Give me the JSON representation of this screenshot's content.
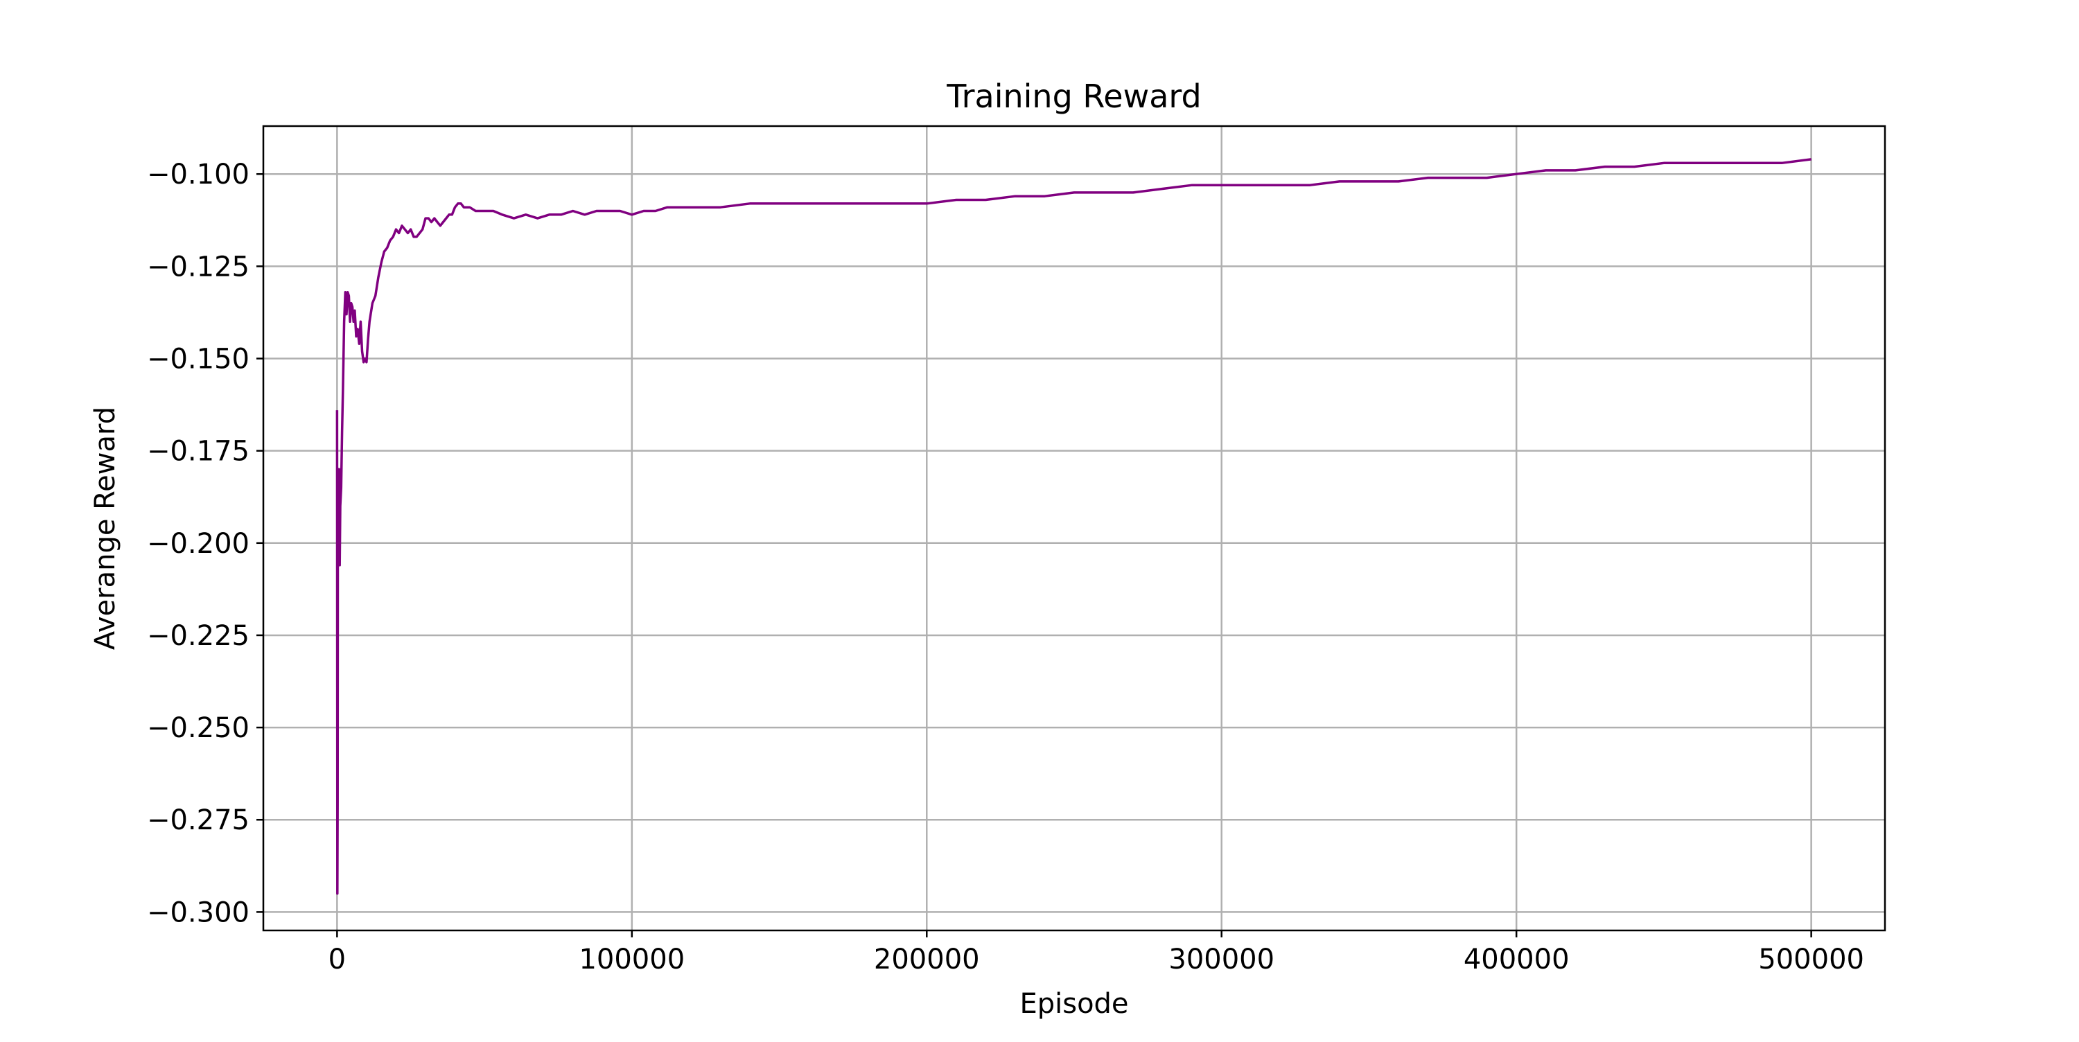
{
  "chart_data": {
    "type": "line",
    "title": "Training Reward",
    "xlabel": "Episode",
    "ylabel": "Averange Reward",
    "xlim": [
      -25000,
      525000
    ],
    "ylim": [
      -0.305,
      -0.087
    ],
    "xticks": [
      0,
      100000,
      200000,
      300000,
      400000,
      500000
    ],
    "xtick_labels": [
      "0",
      "100000",
      "200000",
      "300000",
      "400000",
      "500000"
    ],
    "yticks": [
      -0.3,
      -0.275,
      -0.25,
      -0.225,
      -0.2,
      -0.175,
      -0.15,
      -0.125,
      -0.1
    ],
    "ytick_labels": [
      "−0.300",
      "−0.275",
      "−0.250",
      "−0.225",
      "−0.200",
      "−0.175",
      "−0.150",
      "−0.125",
      "−0.100"
    ],
    "grid": true,
    "legend": "none",
    "series": [
      {
        "color": "#800080",
        "x": [
          0,
          100,
          200,
          300,
          500,
          700,
          900,
          1100,
          1400,
          1700,
          2000,
          2400,
          2800,
          3200,
          3600,
          4000,
          4400,
          4800,
          5200,
          5600,
          6000,
          6500,
          7000,
          7500,
          8000,
          8500,
          9000,
          9500,
          10000,
          10500,
          11000,
          12000,
          13000,
          14000,
          15000,
          16000,
          17000,
          18000,
          19000,
          20000,
          21000,
          22000,
          23000,
          24000,
          25000,
          26000,
          27000,
          28000,
          29000,
          30000,
          31000,
          32000,
          33000,
          34000,
          35000,
          36000,
          37000,
          38000,
          39000,
          40000,
          41000,
          42000,
          43000,
          44000,
          45000,
          47000,
          50000,
          53000,
          56000,
          60000,
          64000,
          68000,
          72000,
          76000,
          80000,
          84000,
          88000,
          92000,
          96000,
          100000,
          104000,
          108000,
          112000,
          120000,
          130000,
          140000,
          150000,
          160000,
          170000,
          180000,
          190000,
          200000,
          210000,
          220000,
          230000,
          240000,
          250000,
          260000,
          270000,
          280000,
          290000,
          300000,
          310000,
          320000,
          330000,
          340000,
          350000,
          360000,
          370000,
          380000,
          390000,
          400000,
          410000,
          420000,
          430000,
          440000,
          450000,
          460000,
          470000,
          480000,
          490000,
          500000
        ],
        "y": [
          -0.164,
          -0.295,
          -0.27,
          -0.18,
          -0.205,
          -0.18,
          -0.206,
          -0.19,
          -0.185,
          -0.17,
          -0.158,
          -0.14,
          -0.132,
          -0.138,
          -0.132,
          -0.133,
          -0.14,
          -0.135,
          -0.136,
          -0.14,
          -0.137,
          -0.144,
          -0.142,
          -0.146,
          -0.14,
          -0.148,
          -0.151,
          -0.15,
          -0.151,
          -0.145,
          -0.14,
          -0.135,
          -0.133,
          -0.128,
          -0.124,
          -0.121,
          -0.12,
          -0.118,
          -0.117,
          -0.115,
          -0.116,
          -0.114,
          -0.115,
          -0.116,
          -0.115,
          -0.117,
          -0.117,
          -0.116,
          -0.115,
          -0.112,
          -0.112,
          -0.113,
          -0.112,
          -0.113,
          -0.114,
          -0.113,
          -0.112,
          -0.111,
          -0.111,
          -0.109,
          -0.108,
          -0.108,
          -0.109,
          -0.109,
          -0.109,
          -0.11,
          -0.11,
          -0.11,
          -0.111,
          -0.112,
          -0.111,
          -0.112,
          -0.111,
          -0.111,
          -0.11,
          -0.111,
          -0.11,
          -0.11,
          -0.11,
          -0.111,
          -0.11,
          -0.11,
          -0.109,
          -0.109,
          -0.109,
          -0.108,
          -0.108,
          -0.108,
          -0.108,
          -0.108,
          -0.108,
          -0.108,
          -0.107,
          -0.107,
          -0.106,
          -0.106,
          -0.105,
          -0.105,
          -0.105,
          -0.104,
          -0.103,
          -0.103,
          -0.103,
          -0.103,
          -0.103,
          -0.102,
          -0.102,
          -0.102,
          -0.101,
          -0.101,
          -0.101,
          -0.1,
          -0.099,
          -0.099,
          -0.098,
          -0.098,
          -0.097,
          -0.097,
          -0.097,
          -0.097,
          -0.097,
          -0.096
        ]
      }
    ]
  }
}
